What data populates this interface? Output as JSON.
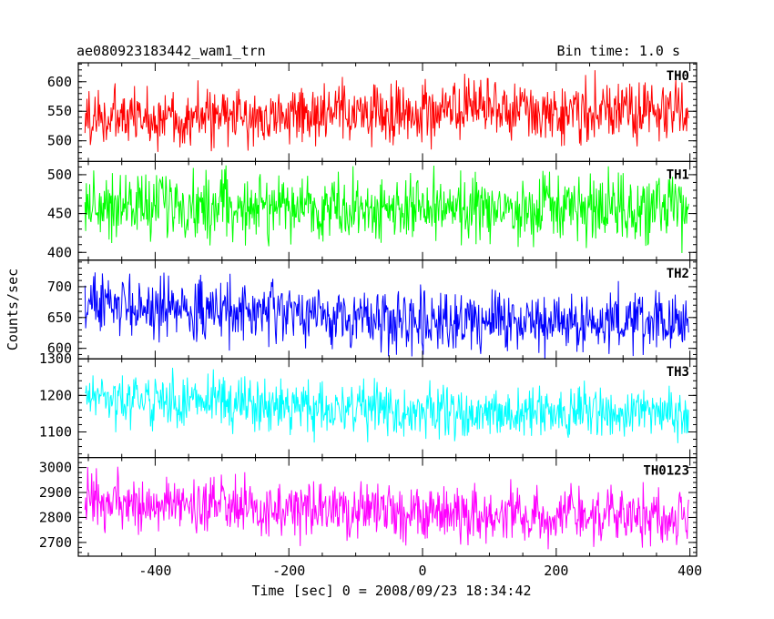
{
  "header": {
    "title": "ae080923183442_wam1_trn",
    "bin_time": "Bin time: 1.0 s"
  },
  "chart_data": {
    "type": "line",
    "xlabel": "Time [sec] 0 = 2008/09/23 18:34:42",
    "ylabel": "Counts/sec",
    "xlim": [
      -515,
      410
    ],
    "x_range_of_data": [
      -505,
      398
    ],
    "x_step": 1.0,
    "xticks": [
      -400,
      -200,
      0,
      200,
      400
    ],
    "panels": [
      {
        "name": "TH0",
        "color": "#ff0000",
        "ylim": [
          465,
          632
        ],
        "yticks": [
          500,
          550,
          600
        ],
        "trend": [
          [
            -505,
            538
          ],
          [
            -300,
            540
          ],
          [
            -100,
            545
          ],
          [
            100,
            552
          ],
          [
            398,
            548
          ]
        ],
        "scatter": 25
      },
      {
        "name": "TH1",
        "color": "#00ff00",
        "ylim": [
          390,
          517
        ],
        "yticks": [
          400,
          450,
          500
        ],
        "trend": [
          [
            -505,
            462
          ],
          [
            -200,
            458
          ],
          [
            0,
            455
          ],
          [
            200,
            455
          ],
          [
            398,
            452
          ]
        ],
        "scatter": 21
      },
      {
        "name": "TH2",
        "color": "#0000ff",
        "ylim": [
          583,
          743
        ],
        "yticks": [
          600,
          650,
          700
        ],
        "trend": [
          [
            -505,
            672
          ],
          [
            -300,
            660
          ],
          [
            -100,
            650
          ],
          [
            100,
            645
          ],
          [
            398,
            640
          ]
        ],
        "scatter": 24
      },
      {
        "name": "TH3",
        "color": "#00ffff",
        "ylim": [
          1030,
          1300
        ],
        "yticks": [
          1100,
          1200,
          1300
        ],
        "trend": [
          [
            -505,
            1195
          ],
          [
            -300,
            1180
          ],
          [
            -100,
            1160
          ],
          [
            100,
            1155
          ],
          [
            398,
            1150
          ]
        ],
        "scatter": 34
      },
      {
        "name": "TH0123",
        "color": "#ff00ff",
        "ylim": [
          2645,
          3040
        ],
        "yticks": [
          2700,
          2800,
          2900,
          3000
        ],
        "trend": [
          [
            -505,
            2860
          ],
          [
            -300,
            2840
          ],
          [
            -100,
            2820
          ],
          [
            100,
            2810
          ],
          [
            398,
            2805
          ]
        ],
        "scatter": 55
      }
    ]
  }
}
